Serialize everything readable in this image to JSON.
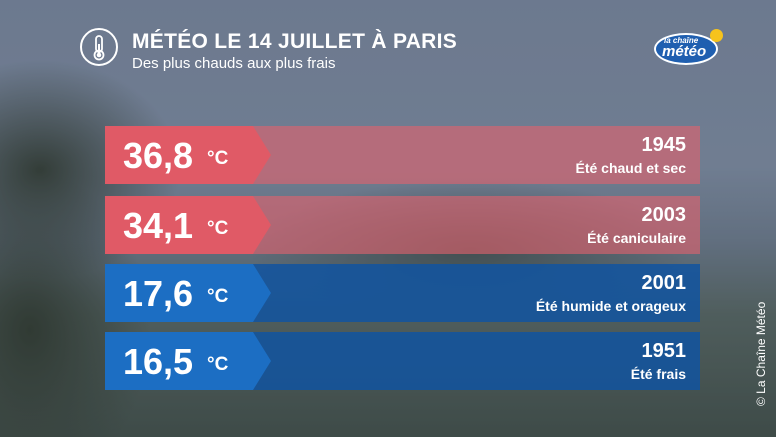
{
  "header": {
    "title": "MÉTÉO LE 14 JUILLET À PARIS",
    "subtitle": "Des plus chauds aux plus frais",
    "icon": "thermometer-icon"
  },
  "logo": {
    "line1": "la chaîne",
    "line2": "météo",
    "colors": {
      "blue": "#1f5fb0",
      "sun": "#f6c31c"
    }
  },
  "rows": [
    {
      "value": "36,8",
      "unit": "°C",
      "year": "1945",
      "description": "Été chaud et sec",
      "color": "#e05a66"
    },
    {
      "value": "34,1",
      "unit": "°C",
      "year": "2003",
      "description": "Été caniculaire",
      "color": "#e05a66"
    },
    {
      "value": "17,6",
      "unit": "°C",
      "year": "2001",
      "description": "Été humide et orageux",
      "color": "#1c6ec3"
    },
    {
      "value": "16,5",
      "unit": "°C",
      "year": "1951",
      "description": "Été frais",
      "color": "#1c6ec3"
    }
  ],
  "credit": "© La Chaîne Météo"
}
